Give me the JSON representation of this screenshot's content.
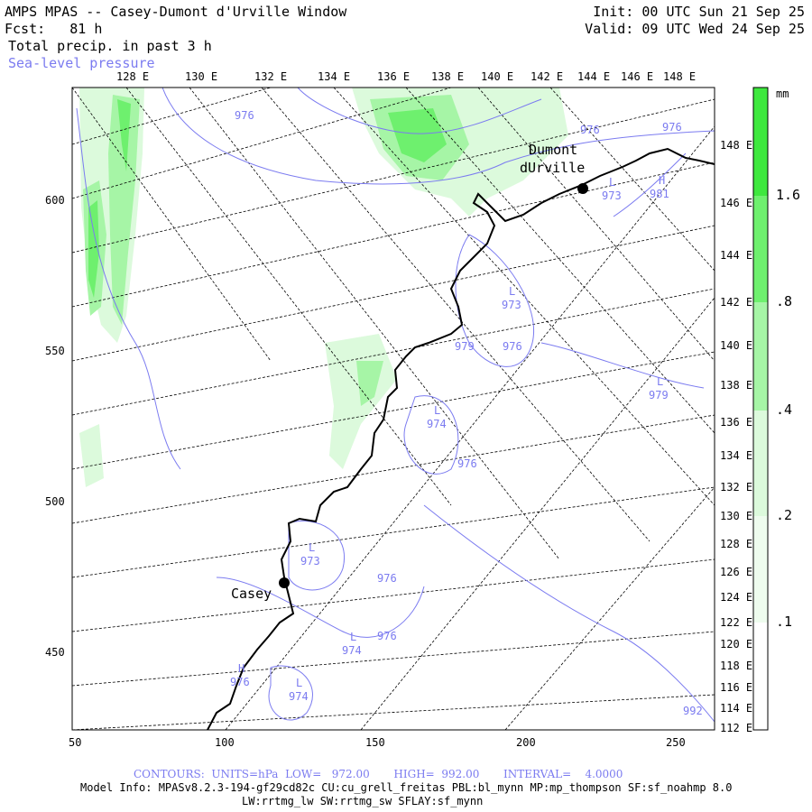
{
  "header": {
    "title": "AMPS MPAS -- Casey-Dumont d'Urville Window",
    "fcst": "Fcst:   81 h",
    "field": "Total precip. in past 3 h",
    "overlay": "Sea-level pressure",
    "init": "Init: 00 UTC Sun 21 Sep 25",
    "valid": "Valid: 09 UTC Wed 24 Sep 25"
  },
  "top_lon_labels": [
    "128 E",
    "130 E",
    "132 E",
    "134 E",
    "136 E",
    "138 E",
    "140 E",
    "142 E",
    "144 E",
    "146 E",
    "148 E"
  ],
  "right_lon_labels": [
    "148 E",
    "146 E",
    "144 E",
    "142 E",
    "140 E",
    "138 E",
    "136 E",
    "134 E",
    "132 E",
    "130 E",
    "128 E",
    "126 E",
    "124 E",
    "122 E",
    "120 E",
    "118 E",
    "116 E",
    "114 E",
    "112 E"
  ],
  "y_axis": [
    "600",
    "550",
    "500",
    "450"
  ],
  "x_axis": [
    "50",
    "100",
    "150",
    "200",
    "250"
  ],
  "colorbar": {
    "unit": "mm",
    "labels": [
      "1.6",
      ".8",
      ".4",
      ".2",
      ".1"
    ],
    "colors": [
      "#3ee83e",
      "#6ef06e",
      "#a6f5a6",
      "#dcfadc",
      "#ffffff"
    ]
  },
  "places": [
    {
      "name": "Dumont",
      "name2": "dUrville"
    },
    {
      "name": "Casey"
    }
  ],
  "pressure_labels": [
    "976",
    "976",
    "976",
    "973",
    "973",
    "979",
    "976",
    "979",
    "974",
    "976",
    "976",
    "973",
    "976",
    "974",
    "976",
    "974",
    "992",
    "981"
  ],
  "lows": [
    "L",
    "L",
    "L",
    "L",
    "L",
    "L",
    "L"
  ],
  "highs": [
    "H",
    "H"
  ],
  "footer": {
    "contours": "CONTOURS:  UNITS=hPa  LOW=   972.00       HIGH=  992.00       INTERVAL=    4.0000",
    "model": "Model Info: MPASv8.2.3-194-gf29cd82c CU:cu_grell_freitas PBL:bl_mynn MP:mp_thompson SF:sf_noahmp 8.0",
    "model2": "LW:rrtmg_lw SW:rrtmg_sw SFLAY:sf_mynn"
  }
}
